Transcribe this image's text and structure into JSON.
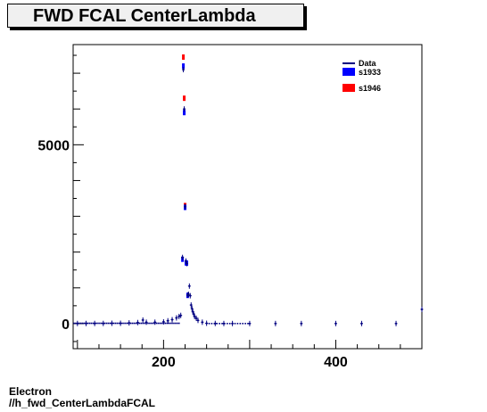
{
  "title": "FWD FCAL CenterLambda",
  "footer": {
    "line1": "Electron",
    "line2": "//h_fwd_CenterLambdaFCAL"
  },
  "colors": {
    "data": "#000080",
    "s1933": "#0000ff",
    "s1946": "#ff0000",
    "axis": "#000000"
  },
  "chart_data": {
    "type": "scatter",
    "title": "FWD FCAL CenterLambda",
    "xlabel": "",
    "ylabel": "",
    "xlim": [
      95,
      500
    ],
    "ylim": [
      -700,
      7800
    ],
    "x_ticks": [
      200,
      400
    ],
    "y_ticks": [
      0,
      5000
    ],
    "grid": false,
    "legend_position": "top-right",
    "legend": [
      "Data",
      "s1933",
      "s1946"
    ],
    "series": [
      {
        "name": "Data",
        "points": [
          [
            100,
            5
          ],
          [
            110,
            5
          ],
          [
            120,
            5
          ],
          [
            130,
            5
          ],
          [
            140,
            10
          ],
          [
            150,
            10
          ],
          [
            160,
            20
          ],
          [
            170,
            30
          ],
          [
            176,
            100
          ],
          [
            180,
            40
          ],
          [
            190,
            40
          ],
          [
            200,
            50
          ],
          [
            205,
            80
          ],
          [
            210,
            110
          ],
          [
            215,
            160
          ],
          [
            218,
            200
          ],
          [
            220,
            230
          ],
          [
            222,
            1850
          ],
          [
            223,
            7100
          ],
          [
            224,
            6000
          ],
          [
            225,
            3270
          ],
          [
            226,
            1750
          ],
          [
            227,
            1680
          ],
          [
            228,
            800
          ],
          [
            229,
            820
          ],
          [
            230,
            1050
          ],
          [
            231,
            780
          ],
          [
            232,
            520
          ],
          [
            233,
            420
          ],
          [
            234,
            330
          ],
          [
            235,
            270
          ],
          [
            236,
            200
          ],
          [
            238,
            150
          ],
          [
            240,
            90
          ],
          [
            245,
            40
          ],
          [
            250,
            10
          ],
          [
            260,
            5
          ],
          [
            270,
            3
          ],
          [
            280,
            3
          ],
          [
            300,
            3
          ],
          [
            330,
            3
          ],
          [
            360,
            3
          ],
          [
            400,
            3
          ],
          [
            430,
            3
          ],
          [
            470,
            3
          ],
          [
            500,
            400
          ]
        ]
      },
      {
        "name": "s1933",
        "points": [
          [
            222,
            1800
          ],
          [
            223,
            7200
          ],
          [
            224,
            5900
          ],
          [
            225,
            3250
          ],
          [
            226,
            1700
          ],
          [
            227,
            1690
          ],
          [
            228,
            790
          ]
        ]
      },
      {
        "name": "s1946",
        "points": [
          [
            223,
            7450
          ],
          [
            224,
            6300
          ],
          [
            225,
            3300
          ]
        ]
      }
    ]
  }
}
